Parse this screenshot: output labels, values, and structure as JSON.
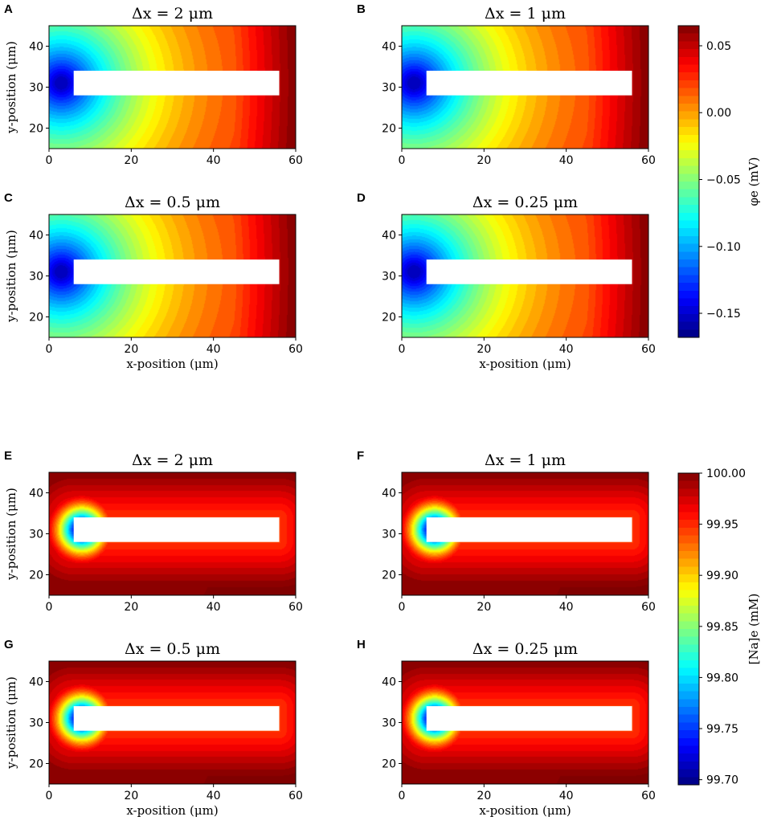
{
  "figure": {
    "colormap": "jet",
    "background": "#ffffff"
  },
  "chart_data": [
    {
      "type": "heatmap",
      "field": "phi",
      "panel_label": "A",
      "title": "Δx = 2 μm",
      "xlabel": "",
      "ylabel": "y-position (μm)",
      "xlim": [
        0,
        60
      ],
      "ylim": [
        15,
        45
      ],
      "xticks": [
        "0",
        "20",
        "40",
        "60"
      ],
      "yticks": [
        "20",
        "30",
        "40"
      ],
      "cell_rect": {
        "x": [
          6,
          56
        ],
        "y": [
          28,
          34
        ]
      }
    },
    {
      "type": "heatmap",
      "field": "phi",
      "panel_label": "B",
      "title": "Δx = 1 μm",
      "xlabel": "",
      "ylabel": "",
      "xlim": [
        0,
        60
      ],
      "ylim": [
        15,
        45
      ],
      "xticks": [
        "0",
        "20",
        "40",
        "60"
      ],
      "yticks": [
        "20",
        "30",
        "40"
      ],
      "cell_rect": {
        "x": [
          6,
          56
        ],
        "y": [
          28,
          34
        ]
      }
    },
    {
      "type": "heatmap",
      "field": "phi",
      "panel_label": "C",
      "title": "Δx = 0.5 μm",
      "xlabel": "x-position (μm)",
      "ylabel": "y-position (μm)",
      "xlim": [
        0,
        60
      ],
      "ylim": [
        15,
        45
      ],
      "xticks": [
        "0",
        "20",
        "40",
        "60"
      ],
      "yticks": [
        "20",
        "30",
        "40"
      ],
      "cell_rect": {
        "x": [
          6,
          56
        ],
        "y": [
          28,
          34
        ]
      }
    },
    {
      "type": "heatmap",
      "field": "phi",
      "panel_label": "D",
      "title": "Δx = 0.25 μm",
      "xlabel": "x-position (μm)",
      "ylabel": "",
      "xlim": [
        0,
        60
      ],
      "ylim": [
        15,
        45
      ],
      "xticks": [
        "0",
        "20",
        "40",
        "60"
      ],
      "yticks": [
        "20",
        "30",
        "40"
      ],
      "cell_rect": {
        "x": [
          6,
          56
        ],
        "y": [
          28,
          34
        ]
      }
    },
    {
      "type": "heatmap",
      "field": "na",
      "panel_label": "E",
      "title": "Δx = 2 μm",
      "xlabel": "",
      "ylabel": "y-position (μm)",
      "xlim": [
        0,
        60
      ],
      "ylim": [
        15,
        45
      ],
      "xticks": [
        "0",
        "20",
        "40",
        "60"
      ],
      "yticks": [
        "20",
        "30",
        "40"
      ],
      "cell_rect": {
        "x": [
          6,
          56
        ],
        "y": [
          28,
          34
        ]
      }
    },
    {
      "type": "heatmap",
      "field": "na",
      "panel_label": "F",
      "title": "Δx = 1 μm",
      "xlabel": "",
      "ylabel": "",
      "xlim": [
        0,
        60
      ],
      "ylim": [
        15,
        45
      ],
      "xticks": [
        "0",
        "20",
        "40",
        "60"
      ],
      "yticks": [
        "20",
        "30",
        "40"
      ],
      "cell_rect": {
        "x": [
          6,
          56
        ],
        "y": [
          28,
          34
        ]
      }
    },
    {
      "type": "heatmap",
      "field": "na",
      "panel_label": "G",
      "title": "Δx = 0.5 μm",
      "xlabel": "x-position (μm)",
      "ylabel": "y-position (μm)",
      "xlim": [
        0,
        60
      ],
      "ylim": [
        15,
        45
      ],
      "xticks": [
        "0",
        "20",
        "40",
        "60"
      ],
      "yticks": [
        "20",
        "30",
        "40"
      ],
      "cell_rect": {
        "x": [
          6,
          56
        ],
        "y": [
          28,
          34
        ]
      }
    },
    {
      "type": "heatmap",
      "field": "na",
      "panel_label": "H",
      "title": "Δx = 0.25 μm",
      "xlabel": "x-position (μm)",
      "ylabel": "",
      "xlim": [
        0,
        60
      ],
      "ylim": [
        15,
        45
      ],
      "xticks": [
        "0",
        "20",
        "40",
        "60"
      ],
      "yticks": [
        "20",
        "30",
        "40"
      ],
      "cell_rect": {
        "x": [
          6,
          56
        ],
        "y": [
          28,
          34
        ]
      }
    }
  ],
  "colorbars": [
    {
      "field": "phi",
      "label": "φe (mV)",
      "range": [
        -0.168,
        0.065
      ],
      "ticks": [
        {
          "value": 0.05,
          "label": "0.05"
        },
        {
          "value": 0.0,
          "label": "0.00"
        },
        {
          "value": -0.05,
          "label": "−0.05"
        },
        {
          "value": -0.1,
          "label": "−0.10"
        },
        {
          "value": -0.15,
          "label": "−0.15"
        }
      ]
    },
    {
      "field": "na",
      "label": "[Na]e (mM)",
      "range": [
        99.695,
        100.0
      ],
      "ticks": [
        {
          "value": 100.0,
          "label": "100.00"
        },
        {
          "value": 99.95,
          "label": "99.95"
        },
        {
          "value": 99.9,
          "label": "99.90"
        },
        {
          "value": 99.85,
          "label": "99.85"
        },
        {
          "value": 99.8,
          "label": "99.80"
        },
        {
          "value": 99.75,
          "label": "99.75"
        },
        {
          "value": 99.7,
          "label": "99.70"
        }
      ]
    }
  ]
}
